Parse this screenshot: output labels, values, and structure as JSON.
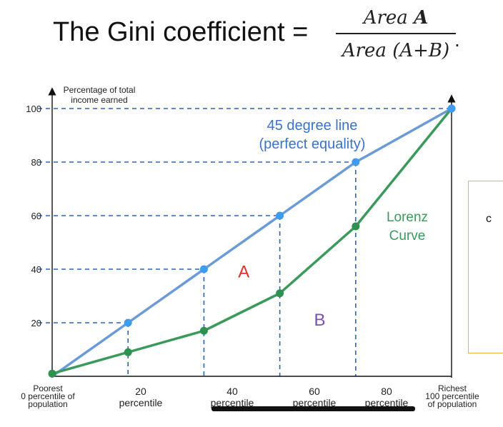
{
  "formula": {
    "lhs": "The Gini coefficient =",
    "numerator_prefix": "Area ",
    "numerator_bold": "A",
    "denominator": "Area (A+B)",
    "trailing": "."
  },
  "side_box": {
    "visible_text": "c"
  },
  "colors": {
    "equality_line": "#6a9bd8",
    "equality_point": "#3e9cf0",
    "lorenz_curve": "#3a9a5b",
    "lorenz_point": "#2f9150",
    "guide_dash": "#2b63b8",
    "region_a": "#e0322b",
    "region_b": "#7b4fb5",
    "equality_label": "#3a73c9",
    "lorenz_label": "#3a9a5b",
    "side_box_border": "#e8b73a"
  },
  "chart_data": {
    "type": "line",
    "xlabel": "",
    "ylabel": "Percentage of total income earned",
    "ylabel_lines": [
      "Percentage of total",
      "income earned"
    ],
    "ylim": [
      0,
      100
    ],
    "xlim": [
      0,
      100
    ],
    "y_ticks": [
      20,
      40,
      60,
      80,
      100
    ],
    "grid": false,
    "x_tick_labels": [
      {
        "x": 0,
        "lines": [
          "Poorest",
          "0 percentile of",
          "population"
        ]
      },
      {
        "x": 20,
        "lines": [
          "20",
          "percentile"
        ]
      },
      {
        "x": 40,
        "lines": [
          "40",
          "percentile"
        ]
      },
      {
        "x": 60,
        "lines": [
          "60",
          "percentile"
        ]
      },
      {
        "x": 80,
        "lines": [
          "80",
          "percentile"
        ]
      },
      {
        "x": 100,
        "lines": [
          "Richest",
          "100 percentile",
          "of population"
        ]
      }
    ],
    "series": [
      {
        "name": "45 degree line (perfect equality)",
        "label_lines": [
          "45 degree line",
          "(perfect equality)"
        ],
        "x": [
          0,
          19,
          38,
          57,
          76,
          100
        ],
        "y": [
          0,
          20,
          40,
          60,
          80,
          100
        ]
      },
      {
        "name": "Lorenz Curve",
        "label_lines": [
          "Lorenz",
          "Curve"
        ],
        "x": [
          0,
          19,
          38,
          57,
          76,
          100
        ],
        "y": [
          1,
          9,
          17,
          31,
          56,
          100
        ]
      }
    ],
    "annotations": [
      {
        "text": "A",
        "x": 48,
        "y": 37
      },
      {
        "text": "B",
        "x": 67,
        "y": 19
      }
    ]
  }
}
